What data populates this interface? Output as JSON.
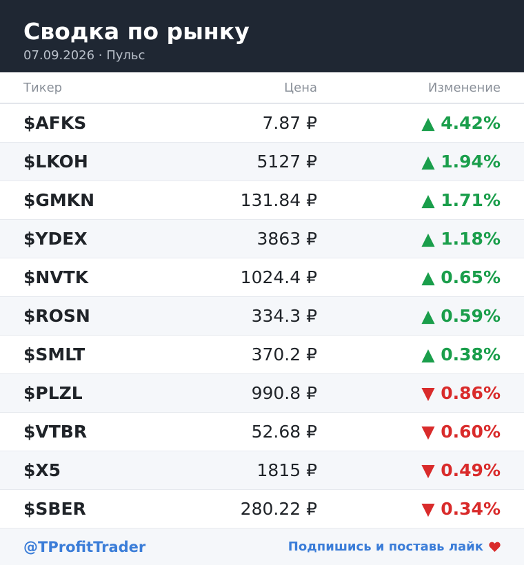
{
  "header": {
    "title": "Сводка по рынку",
    "subtitle": "07.09.2026 · Пульс"
  },
  "table": {
    "columns": [
      "Тикер",
      "Цена",
      "Изменение"
    ],
    "rows": [
      [
        "$AFKS",
        "7.87 ₽",
        "▲ 4.42%"
      ],
      [
        "$LKOH",
        "5127 ₽",
        "▲ 1.94%"
      ],
      [
        "$GMKN",
        "131.84 ₽",
        "▲ 1.71%"
      ],
      [
        "$YDEX",
        "3863 ₽",
        "▲ 1.18%"
      ],
      [
        "$NVTK",
        "1024.4 ₽",
        "▲ 0.65%"
      ],
      [
        "$ROSN",
        "334.3 ₽",
        "▲ 0.59%"
      ],
      [
        "$SMLT",
        "370.2 ₽",
        "▲ 0.38%"
      ],
      [
        "$PLZL",
        "990.8 ₽",
        "▼ 0.86%"
      ],
      [
        "$VTBR",
        "52.68 ₽",
        "▼ 0.60%"
      ],
      [
        "$X5",
        "1815 ₽",
        "▼ 0.49%"
      ],
      [
        "$SBER",
        "280.22 ₽",
        "▼ 0.34%"
      ]
    ]
  },
  "footer": {
    "handle": "@TProfitTrader",
    "cta": "Подпишись и поставь лайк"
  }
}
